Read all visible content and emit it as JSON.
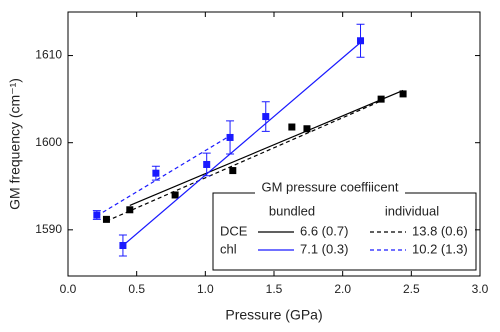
{
  "chart_data": {
    "type": "scatter",
    "xlabel": "Pressure (GPa)",
    "ylabel": "GM frequency (cm⁻¹)",
    "xlim": [
      0,
      3
    ],
    "xticks": [
      {
        "value": 0,
        "label": "0.0"
      },
      {
        "value": 0.5,
        "label": "0.5"
      },
      {
        "value": 1,
        "label": "1.0"
      },
      {
        "value": 1.5,
        "label": "1.5"
      },
      {
        "value": 2,
        "label": "2.0"
      },
      {
        "value": 2.5,
        "label": "2.5"
      },
      {
        "value": 3,
        "label": "3.0"
      }
    ],
    "ylim": [
      1584.7,
      1615
    ],
    "yticks": [
      1590,
      1600,
      1610
    ],
    "legend": {
      "title": "GM pressure coeffiicent",
      "columns": [
        "bundled",
        "individual"
      ]
    },
    "series": [
      {
        "name": "DCE",
        "color": "#000000",
        "x": [
          0.28,
          0.45,
          0.78,
          1.2,
          1.63,
          1.74,
          2.28,
          2.44
        ],
        "values": [
          1591.2,
          1592.3,
          1594.0,
          1596.8,
          1601.8,
          1601.6,
          1605.0,
          1605.6
        ],
        "fits": [
          {
            "label": "6.6 (0.7)",
            "style": "solid",
            "x": [
              0.45,
              2.44
            ],
            "values": [
              1592.8,
              1606.0
            ]
          },
          {
            "label": "13.8 (0.6)",
            "style": "dashed",
            "x": [
              0.28,
              2.28
            ],
            "values": [
              1591.0,
              1604.8
            ]
          }
        ]
      },
      {
        "name": "chl",
        "color": "#1a1aff",
        "x": [
          0.21,
          0.4,
          0.64,
          1.01,
          1.18,
          1.44,
          2.13
        ],
        "values": [
          1591.7,
          1588.2,
          1596.5,
          1597.5,
          1600.6,
          1603.0,
          1611.7
        ],
        "errors": [
          0.5,
          1.2,
          0.8,
          1.3,
          1.9,
          1.7,
          1.9
        ],
        "fits": [
          {
            "label": "7.1 (0.3)",
            "style": "solid",
            "x": [
              0.4,
              2.13
            ],
            "values": [
              1588.2,
              1611.5
            ]
          },
          {
            "label": "10.2 (1.3)",
            "style": "dashed",
            "x": [
              0.21,
              1.18
            ],
            "values": [
              1591.6,
              1600.8
            ]
          }
        ]
      }
    ]
  }
}
